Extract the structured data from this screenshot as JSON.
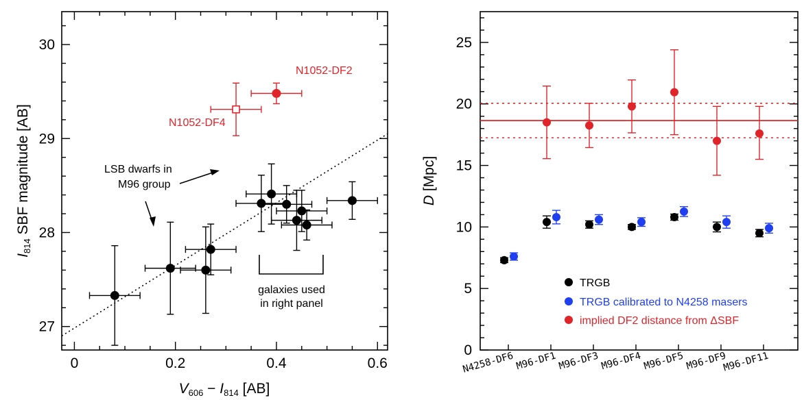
{
  "chart_data": [
    {
      "type": "scatter",
      "title": "",
      "xlabel": {
        "pre": "V",
        "pre_sub": "606",
        "mid": " − ",
        "post": "I",
        "post_sub": "814",
        "unit": " [AB]"
      },
      "ylabel": {
        "pre": "I",
        "pre_sub": "814",
        "rest": " SBF magnitude [AB]"
      },
      "xlim": [
        -0.025,
        0.62
      ],
      "ylim": [
        26.75,
        30.35
      ],
      "xticks": [
        0,
        0.2,
        0.4,
        0.6
      ],
      "xtick_labels": [
        "0",
        "0.2",
        "0.4",
        "0.6"
      ],
      "yticks": [
        27,
        28,
        29,
        30
      ],
      "ytick_labels": [
        "27",
        "28",
        "29",
        "30"
      ],
      "fit_line": {
        "x": [
          -0.025,
          0.62
        ],
        "y": [
          26.9,
          29.05
        ],
        "style": "dotted"
      },
      "series": [
        {
          "name": "LSB dwarfs in M96 group",
          "color": "#000000",
          "marker": "filled-circle",
          "points": [
            {
              "x": 0.08,
              "y": 27.33,
              "xerr": 0.05,
              "yerr": 0.53
            },
            {
              "x": 0.19,
              "y": 27.62,
              "xerr": 0.05,
              "yerr": 0.49
            },
            {
              "x": 0.26,
              "y": 27.6,
              "xerr": 0.05,
              "yerr": 0.46
            },
            {
              "x": 0.27,
              "y": 27.82,
              "xerr": 0.05,
              "yerr": 0.27
            },
            {
              "x": 0.37,
              "y": 28.31,
              "xerr": 0.05,
              "yerr": 0.3
            },
            {
              "x": 0.39,
              "y": 28.41,
              "xerr": 0.05,
              "yerr": 0.32
            },
            {
              "x": 0.42,
              "y": 28.3,
              "xerr": 0.05,
              "yerr": 0.2
            },
            {
              "x": 0.44,
              "y": 28.13,
              "xerr": 0.05,
              "yerr": 0.32
            },
            {
              "x": 0.45,
              "y": 28.23,
              "xerr": 0.05,
              "yerr": 0.22
            },
            {
              "x": 0.46,
              "y": 28.08,
              "xerr": 0.05,
              "yerr": 0.16
            },
            {
              "x": 0.55,
              "y": 28.34,
              "xerr": 0.05,
              "yerr": 0.2
            }
          ]
        },
        {
          "name": "N1052-DF2",
          "color": "#e0242a",
          "marker": "filled-circle",
          "points": [
            {
              "x": 0.4,
              "y": 29.48,
              "xerr": 0.05,
              "yerr": 0.11
            }
          ]
        },
        {
          "name": "N1052-DF4",
          "color": "#e0242a",
          "marker": "open-square",
          "points": [
            {
              "x": 0.32,
              "y": 29.31,
              "xerr": 0.05,
              "yerr": 0.28
            }
          ]
        }
      ],
      "annotations": {
        "df2_label": "N1052-DF2",
        "df4_label": "N1052-DF4",
        "lsb_line1": "LSB dwarfs in",
        "lsb_line2": "M96 group",
        "bracket_line1": "galaxies used",
        "bracket_line2": "in right panel"
      }
    },
    {
      "type": "scatter",
      "title": "",
      "xlabel": "",
      "ylabel": {
        "pre": "D",
        "rest": " [Mpc]"
      },
      "ylim": [
        0,
        27.5
      ],
      "yticks": [
        0,
        5,
        10,
        15,
        20,
        25
      ],
      "ytick_labels": [
        "0",
        "5",
        "10",
        "15",
        "20",
        "25"
      ],
      "categories": [
        "N4258-DF6",
        "M96-DF1",
        "M96-DF3",
        "M96-DF4",
        "M96-DF5",
        "M96-DF9",
        "M96-DF11"
      ],
      "series": [
        {
          "name": "TRGB",
          "color": "#000000",
          "values": [
            7.3,
            10.4,
            10.2,
            10.0,
            10.8,
            10.0,
            9.5
          ],
          "errors": [
            0.2,
            0.5,
            0.3,
            0.2,
            0.25,
            0.4,
            0.3
          ]
        },
        {
          "name": "TRGB calibrated to N4258 masers",
          "color": "#1f3ff0",
          "values": [
            7.6,
            10.8,
            10.6,
            10.4,
            11.25,
            10.4,
            9.9
          ],
          "errors": [
            0.3,
            0.55,
            0.4,
            0.35,
            0.4,
            0.5,
            0.4
          ]
        },
        {
          "name": "implied DF2 distance from ΔSBF",
          "color": "#e0242a",
          "values": [
            null,
            18.5,
            18.25,
            19.8,
            20.95,
            17.0,
            17.6
          ],
          "errors_up": [
            null,
            2.95,
            1.8,
            2.15,
            3.45,
            2.8,
            2.2
          ],
          "errors_down": [
            null,
            2.95,
            1.8,
            2.15,
            3.45,
            2.8,
            2.1
          ]
        }
      ],
      "reference_lines": {
        "mean": 18.65,
        "lower": 17.25,
        "upper": 20.05,
        "color": "#e0242a"
      },
      "legend": {
        "position": "bottom-right"
      }
    }
  ]
}
